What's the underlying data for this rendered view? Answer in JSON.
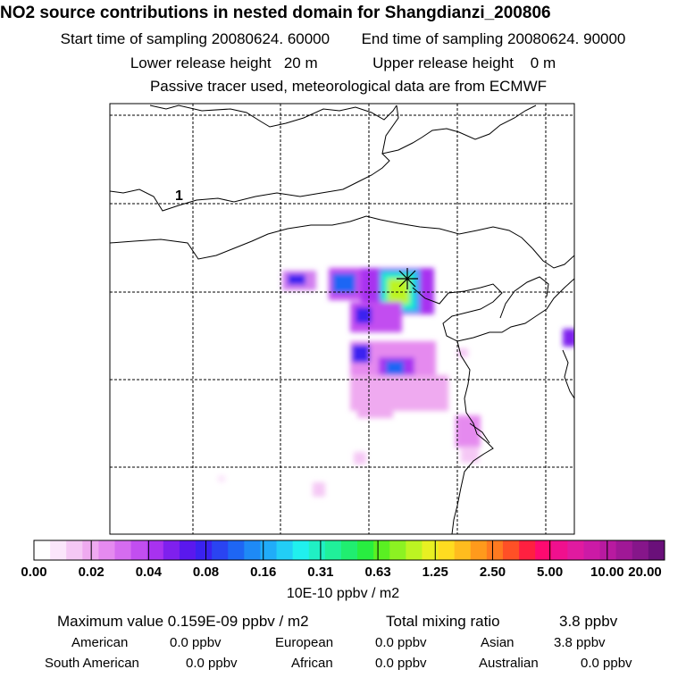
{
  "header": {
    "title": "NO2 source contributions in nested domain for Shangdianzi_200806",
    "start_label": "Start time of sampling 20080624. 60000",
    "end_label": "End time of sampling 20080624. 90000",
    "lower_label": "Lower release height   20 m",
    "upper_label": "Upper release height    0 m",
    "tracer_note": "Passive tracer used, meteorological data are from ECMWF"
  },
  "map": {
    "region_label": "1",
    "station_marker": "star-marker",
    "colors": {
      "frame": "#000000",
      "grid": "#000000"
    }
  },
  "colorbar": {
    "labels": [
      "0.00",
      "0.02",
      "0.04",
      "0.08",
      "0.16",
      "0.31",
      "0.63",
      "1.25",
      "2.50",
      "5.00",
      "10.00",
      "20.00"
    ],
    "colors": [
      "#ffffff",
      "#fbe6fb",
      "#f5c8f5",
      "#efaaf0",
      "#e58aef",
      "#d56cef",
      "#c24ef0",
      "#a832f0",
      "#7f20ee",
      "#5a18ee",
      "#3a22f0",
      "#2a44f2",
      "#1e66f4",
      "#1e8af6",
      "#20acf8",
      "#22cef6",
      "#20f0ee",
      "#20f0c4",
      "#20f09a",
      "#20ee70",
      "#28ee40",
      "#5af022",
      "#8cf222",
      "#bcf422",
      "#e8f022",
      "#ffdc20",
      "#ffbc1e",
      "#ff9a1c",
      "#ff7a20",
      "#ff5026",
      "#ff2040",
      "#ff0a70",
      "#f0108e",
      "#e01aa0",
      "#cc1aa6",
      "#b81aa0",
      "#a01896",
      "#86168a",
      "#6a107a"
    ],
    "unit": "10E-10 ppbv / m2"
  },
  "footer": {
    "max_label": "Maximum value  0.159E-09 ppbv / m2",
    "total_label": "Total mixing ratio",
    "total_value": "3.8 ppbv",
    "american_label": "American",
    "american_value": "0.0 ppbv",
    "european_label": "European",
    "european_value": "0.0 ppbv",
    "asian_label": "Asian",
    "asian_value": "3.8 ppbv",
    "south_american_label": "South American",
    "south_american_value": "0.0 ppbv",
    "african_label": "African",
    "african_value": "0.0 ppbv",
    "australian_label": "Australian",
    "australian_value": "0.0 ppbv"
  }
}
